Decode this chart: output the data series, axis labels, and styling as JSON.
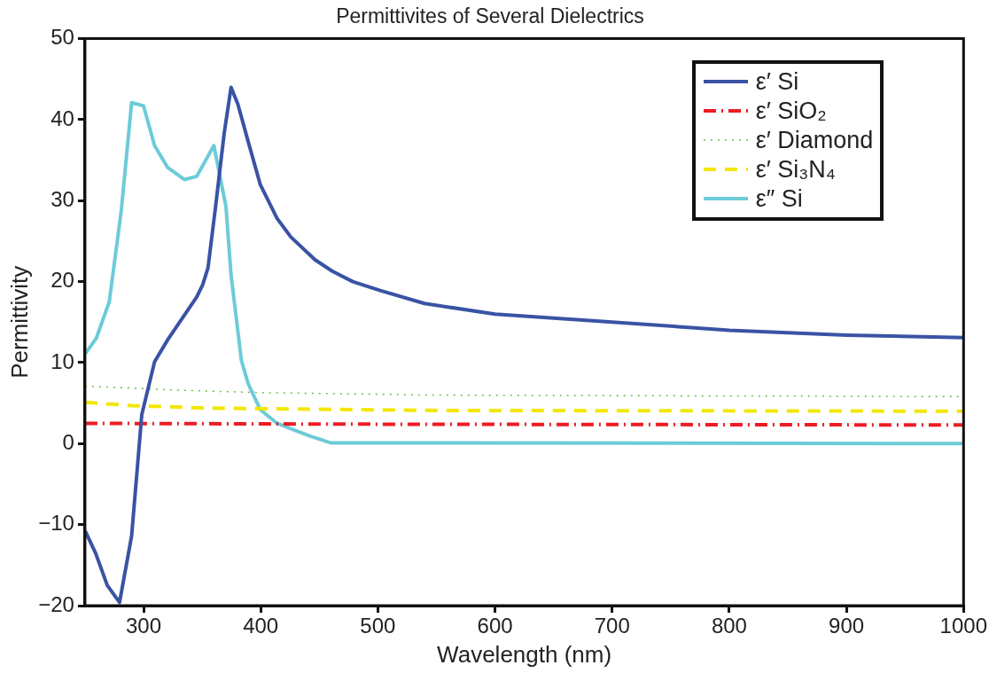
{
  "chart_data": {
    "type": "line",
    "title": "Permittivites of Several Dielectrics",
    "xlabel": "Wavelength (nm)",
    "ylabel": "Permittivity",
    "xlim": [
      250,
      1000
    ],
    "xticks": [
      300,
      400,
      500,
      600,
      700,
      800,
      900,
      1000
    ],
    "ylim": [
      -20,
      50
    ],
    "yticks": [
      -20,
      -10,
      0,
      10,
      20,
      30,
      40,
      50
    ],
    "grid": false,
    "legend": "top right",
    "marker": "none",
    "series": [
      {
        "name": "ε′ Si",
        "color": "#3953a4",
        "line_style": "solid",
        "x": [
          250.2,
          259,
          269,
          279.5,
          289.8,
          298.5,
          309.4,
          320.5,
          345.4,
          350.4,
          355,
          361.5,
          368.8,
          374.7,
          380.5,
          389.3,
          399.6,
          414,
          425.8,
          446.4,
          461,
          478.6,
          502,
          539.8,
          600,
          700,
          800,
          900,
          1000
        ],
        "values": [
          -10.8,
          -13.5,
          -17.5,
          -19.6,
          -11.4,
          3.6,
          10.1,
          12.8,
          18.1,
          19.6,
          21.7,
          29.3,
          38.3,
          44.0,
          41.9,
          37.3,
          32.0,
          27.8,
          25.5,
          22.7,
          21.3,
          20.0,
          18.9,
          17.3,
          16.0,
          15.0,
          14.0,
          13.4,
          13.1
        ]
      },
      {
        "name": "ε′ SiO₂",
        "color": "#ed1c24",
        "line_style": "dashdot",
        "x": [
          250,
          500,
          1000
        ],
        "values": [
          2.5,
          2.4,
          2.3
        ]
      },
      {
        "name": "ε′ Diamond",
        "color": "#6abd45",
        "line_style": "dotted",
        "x": [
          250,
          330,
          400,
          500,
          540,
          1000
        ],
        "values": [
          7.1,
          6.6,
          6.3,
          6.1,
          6.0,
          5.8
        ]
      },
      {
        "name": "ε′ Si₃N₄",
        "color": "#f2e700",
        "line_style": "dashed",
        "x": [
          250,
          290,
          350,
          540,
          1000
        ],
        "values": [
          5.1,
          4.7,
          4.4,
          4.1,
          4.0
        ]
      },
      {
        "name": "ε″ Si",
        "color": "#6dcbd8",
        "line_style": "solid",
        "x": [
          250.2,
          259.6,
          270.7,
          281,
          289.8,
          300,
          309.4,
          320.5,
          335.1,
          345.4,
          360,
          370.3,
          374.7,
          383.5,
          389.3,
          399.6,
          414,
          440.6,
          459.6,
          539.8,
          1000
        ],
        "values": [
          11.1,
          13.0,
          17.5,
          28.8,
          42.1,
          41.7,
          36.8,
          34.1,
          32.6,
          33.0,
          36.8,
          29.3,
          20.8,
          10.3,
          7.4,
          4.2,
          2.5,
          1.0,
          0.1,
          0.1,
          0.0
        ]
      }
    ]
  }
}
